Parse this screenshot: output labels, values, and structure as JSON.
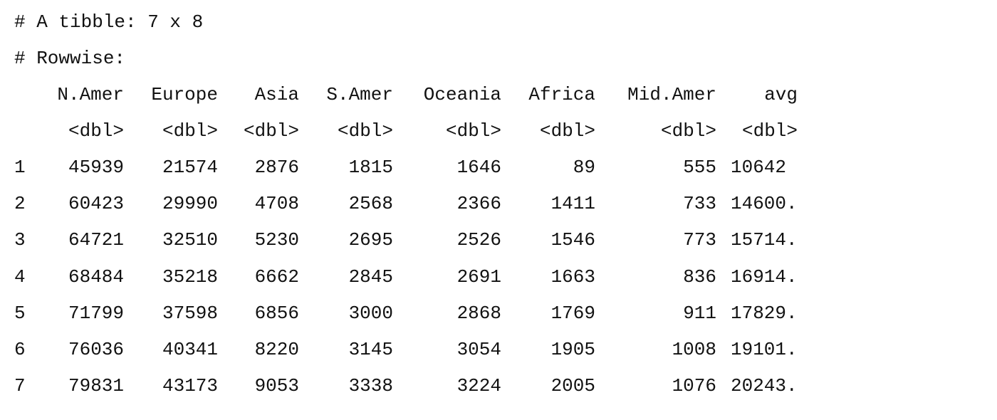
{
  "console": {
    "tibble_header": "# A tibble: 7 x 8",
    "rowwise_note": "# Rowwise:"
  },
  "table": {
    "columns": [
      "N.Amer",
      "Europe",
      "Asia",
      "S.Amer",
      "Oceania",
      "Africa",
      "Mid.Amer",
      "avg"
    ],
    "types": [
      "<dbl>",
      "<dbl>",
      "<dbl>",
      "<dbl>",
      "<dbl>",
      "<dbl>",
      "<dbl>",
      "<dbl>"
    ],
    "rows": [
      {
        "index": "1",
        "cells": [
          "45939",
          "21574",
          "2876",
          "1815",
          "1646",
          "89",
          "555",
          "10642"
        ]
      },
      {
        "index": "2",
        "cells": [
          "60423",
          "29990",
          "4708",
          "2568",
          "2366",
          "1411",
          "733",
          "14600."
        ]
      },
      {
        "index": "3",
        "cells": [
          "64721",
          "32510",
          "5230",
          "2695",
          "2526",
          "1546",
          "773",
          "15714."
        ]
      },
      {
        "index": "4",
        "cells": [
          "68484",
          "35218",
          "6662",
          "2845",
          "2691",
          "1663",
          "836",
          "16914."
        ]
      },
      {
        "index": "5",
        "cells": [
          "71799",
          "37598",
          "6856",
          "3000",
          "2868",
          "1769",
          "911",
          "17829."
        ]
      },
      {
        "index": "6",
        "cells": [
          "76036",
          "40341",
          "8220",
          "3145",
          "3054",
          "1905",
          "1008",
          "19101."
        ]
      },
      {
        "index": "7",
        "cells": [
          "79831",
          "43173",
          "9053",
          "3338",
          "3224",
          "2005",
          "1076",
          "20243."
        ]
      }
    ]
  }
}
